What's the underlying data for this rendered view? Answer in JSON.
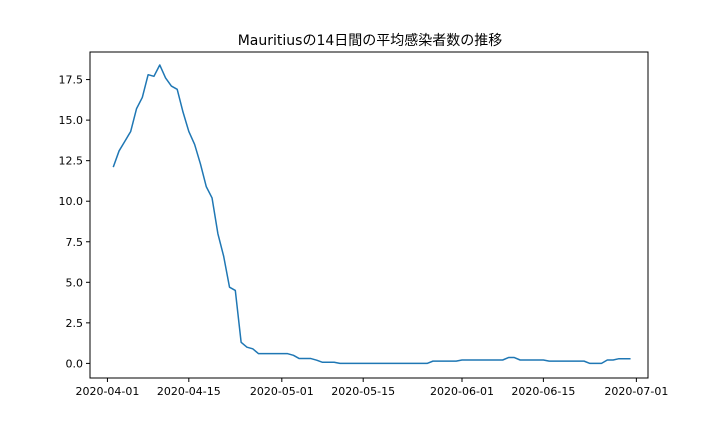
{
  "chart_data": {
    "type": "line",
    "title": "Mauritiusの14日間の平均感染者数の推移",
    "xlabel": "",
    "ylabel": "",
    "grid": false,
    "line_color": "#1f77b4",
    "x_ticks": [
      "2020-04-01",
      "2020-04-15",
      "2020-05-01",
      "2020-05-15",
      "2020-06-01",
      "2020-06-15",
      "2020-07-01"
    ],
    "y_ticks": [
      "0.0",
      "2.5",
      "5.0",
      "7.5",
      "10.0",
      "12.5",
      "15.0",
      "17.5"
    ],
    "xlim": [
      "2020-03-29",
      "2020-07-03"
    ],
    "ylim": [
      -0.9,
      19.2
    ],
    "series": [
      {
        "x": [
          "2020-04-02",
          "2020-04-03",
          "2020-04-04",
          "2020-04-05",
          "2020-04-06",
          "2020-04-07",
          "2020-04-08",
          "2020-04-09",
          "2020-04-10",
          "2020-04-11",
          "2020-04-12",
          "2020-04-13",
          "2020-04-14",
          "2020-04-15",
          "2020-04-16",
          "2020-04-17",
          "2020-04-18",
          "2020-04-19",
          "2020-04-20",
          "2020-04-21",
          "2020-04-22",
          "2020-04-23",
          "2020-04-24",
          "2020-04-25",
          "2020-04-26",
          "2020-04-27",
          "2020-04-28",
          "2020-04-29",
          "2020-04-30",
          "2020-05-01",
          "2020-05-02",
          "2020-05-03",
          "2020-05-04",
          "2020-05-05",
          "2020-05-06",
          "2020-05-07",
          "2020-05-08",
          "2020-05-09",
          "2020-05-10",
          "2020-05-11",
          "2020-05-12",
          "2020-05-13",
          "2020-05-14",
          "2020-05-15",
          "2020-05-16",
          "2020-05-17",
          "2020-05-18",
          "2020-05-19",
          "2020-05-20",
          "2020-05-21",
          "2020-05-22",
          "2020-05-23",
          "2020-05-24",
          "2020-05-25",
          "2020-05-26",
          "2020-05-27",
          "2020-05-28",
          "2020-05-29",
          "2020-05-30",
          "2020-05-31",
          "2020-06-01",
          "2020-06-02",
          "2020-06-03",
          "2020-06-04",
          "2020-06-05",
          "2020-06-06",
          "2020-06-07",
          "2020-06-08",
          "2020-06-09",
          "2020-06-10",
          "2020-06-11",
          "2020-06-12",
          "2020-06-13",
          "2020-06-14",
          "2020-06-15",
          "2020-06-16",
          "2020-06-17",
          "2020-06-18",
          "2020-06-19",
          "2020-06-20",
          "2020-06-21",
          "2020-06-22",
          "2020-06-23",
          "2020-06-24",
          "2020-06-25",
          "2020-06-26",
          "2020-06-27",
          "2020-06-28",
          "2020-06-29",
          "2020-06-30"
        ],
        "y": [
          12.1,
          13.1,
          13.7,
          14.3,
          15.7,
          16.4,
          17.8,
          17.7,
          18.4,
          17.6,
          17.1,
          16.9,
          15.5,
          14.3,
          13.5,
          12.3,
          10.9,
          10.2,
          8.0,
          6.6,
          4.7,
          4.5,
          1.3,
          1.0,
          0.9,
          0.6,
          0.6,
          0.6,
          0.6,
          0.6,
          0.6,
          0.5,
          0.3,
          0.3,
          0.3,
          0.2,
          0.07,
          0.07,
          0.07,
          0.0,
          0.0,
          0.0,
          0.0,
          0.0,
          0.0,
          0.0,
          0.0,
          0.0,
          0.0,
          0.0,
          0.0,
          0.0,
          0.0,
          0.0,
          0.0,
          0.14,
          0.14,
          0.14,
          0.14,
          0.14,
          0.21,
          0.21,
          0.21,
          0.21,
          0.21,
          0.21,
          0.21,
          0.21,
          0.36,
          0.36,
          0.21,
          0.21,
          0.21,
          0.21,
          0.21,
          0.14,
          0.14,
          0.14,
          0.14,
          0.14,
          0.14,
          0.14,
          0.0,
          0.0,
          0.0,
          0.21,
          0.21,
          0.29,
          0.29,
          0.29
        ]
      }
    ]
  }
}
